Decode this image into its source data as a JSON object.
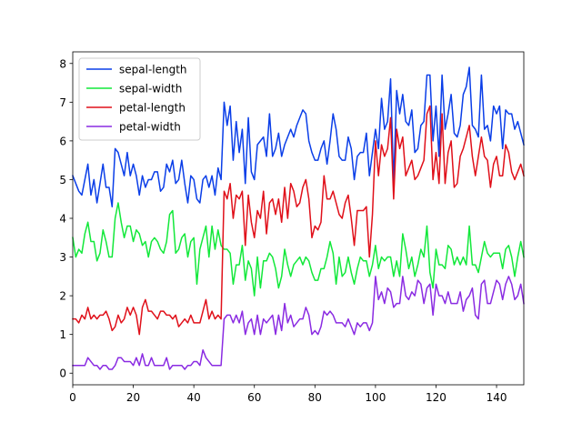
{
  "chart_data": {
    "type": "line",
    "title": "",
    "xlabel": "",
    "ylabel": "",
    "xlim": [
      0,
      149
    ],
    "ylim": [
      -0.3,
      8.3
    ],
    "xticks": [
      0,
      20,
      40,
      60,
      80,
      100,
      120,
      140
    ],
    "yticks": [
      0,
      1,
      2,
      3,
      4,
      5,
      6,
      7,
      8
    ],
    "grid": false,
    "legend_position": "top-left",
    "series": [
      {
        "name": "sepal-length",
        "color": "#0a3ee8",
        "values": [
          5.1,
          4.9,
          4.7,
          4.6,
          5.0,
          5.4,
          4.6,
          5.0,
          4.4,
          4.9,
          5.4,
          4.8,
          4.8,
          4.3,
          5.8,
          5.7,
          5.4,
          5.1,
          5.7,
          5.1,
          5.4,
          5.1,
          4.6,
          5.1,
          4.8,
          5.0,
          5.0,
          5.2,
          5.2,
          4.7,
          4.8,
          5.4,
          5.2,
          5.5,
          4.9,
          5.0,
          5.5,
          4.9,
          4.4,
          5.1,
          5.0,
          4.5,
          4.4,
          5.0,
          5.1,
          4.8,
          5.1,
          4.6,
          5.3,
          5.0,
          7.0,
          6.4,
          6.9,
          5.5,
          6.5,
          5.7,
          6.3,
          4.9,
          6.6,
          5.2,
          5.0,
          5.9,
          6.0,
          6.1,
          5.6,
          6.7,
          5.6,
          5.8,
          6.2,
          5.6,
          5.9,
          6.1,
          6.3,
          6.1,
          6.4,
          6.6,
          6.8,
          6.7,
          6.0,
          5.7,
          5.5,
          5.5,
          5.8,
          6.0,
          5.4,
          6.0,
          6.7,
          6.3,
          5.6,
          5.5,
          5.5,
          6.1,
          5.8,
          5.0,
          5.6,
          5.7,
          5.7,
          6.2,
          5.1,
          5.7,
          6.3,
          5.8,
          7.1,
          6.3,
          6.5,
          7.6,
          4.9,
          7.3,
          6.7,
          7.2,
          6.5,
          6.4,
          6.8,
          5.7,
          5.8,
          6.4,
          6.5,
          7.7,
          7.7,
          6.0,
          6.9,
          5.6,
          7.7,
          6.3,
          6.7,
          7.2,
          6.2,
          6.1,
          6.4,
          7.2,
          7.4,
          7.9,
          6.4,
          6.3,
          6.1,
          7.7,
          6.3,
          6.4,
          6.0,
          6.9,
          6.7,
          6.9,
          5.8,
          6.8,
          6.7,
          6.7,
          6.3,
          6.5,
          6.2,
          5.9
        ]
      },
      {
        "name": "sepal-width",
        "color": "#12e83a",
        "values": [
          3.5,
          3.0,
          3.2,
          3.1,
          3.6,
          3.9,
          3.4,
          3.4,
          2.9,
          3.1,
          3.7,
          3.4,
          3.0,
          3.0,
          4.0,
          4.4,
          3.9,
          3.5,
          3.8,
          3.8,
          3.4,
          3.7,
          3.6,
          3.3,
          3.4,
          3.0,
          3.4,
          3.5,
          3.4,
          3.2,
          3.1,
          3.4,
          4.1,
          4.2,
          3.1,
          3.2,
          3.5,
          3.6,
          3.0,
          3.4,
          3.5,
          2.3,
          3.2,
          3.5,
          3.8,
          3.0,
          3.8,
          3.2,
          3.7,
          3.3,
          3.2,
          3.2,
          3.1,
          2.3,
          2.8,
          2.8,
          3.3,
          2.4,
          2.9,
          2.7,
          2.0,
          3.0,
          2.2,
          2.9,
          2.9,
          3.1,
          3.0,
          2.7,
          2.2,
          2.5,
          3.2,
          2.8,
          2.5,
          2.8,
          2.9,
          3.0,
          2.8,
          3.0,
          2.9,
          2.6,
          2.4,
          2.4,
          2.7,
          2.7,
          3.0,
          3.4,
          3.1,
          2.3,
          3.0,
          2.5,
          2.6,
          3.0,
          2.6,
          2.3,
          2.7,
          3.0,
          2.9,
          2.9,
          2.5,
          2.8,
          3.3,
          2.7,
          3.0,
          2.9,
          3.0,
          3.0,
          2.5,
          2.9,
          2.5,
          3.6,
          3.2,
          2.7,
          3.0,
          2.5,
          2.8,
          3.2,
          3.0,
          3.8,
          2.6,
          2.2,
          3.2,
          2.8,
          2.8,
          2.7,
          3.3,
          3.2,
          2.8,
          3.0,
          2.8,
          3.0,
          2.8,
          3.8,
          2.8,
          2.8,
          2.6,
          3.0,
          3.4,
          3.1,
          3.0,
          3.1,
          3.1,
          3.1,
          2.7,
          3.2,
          3.3,
          3.0,
          2.5,
          3.0,
          3.4,
          3.0
        ]
      },
      {
        "name": "petal-length",
        "color": "#e0101a",
        "values": [
          1.4,
          1.4,
          1.3,
          1.5,
          1.4,
          1.7,
          1.4,
          1.5,
          1.4,
          1.5,
          1.5,
          1.6,
          1.4,
          1.1,
          1.2,
          1.5,
          1.3,
          1.4,
          1.7,
          1.5,
          1.7,
          1.5,
          1.0,
          1.7,
          1.9,
          1.6,
          1.6,
          1.5,
          1.4,
          1.6,
          1.6,
          1.5,
          1.5,
          1.4,
          1.5,
          1.2,
          1.3,
          1.4,
          1.3,
          1.5,
          1.3,
          1.3,
          1.3,
          1.6,
          1.9,
          1.4,
          1.6,
          1.4,
          1.5,
          1.4,
          4.7,
          4.5,
          4.9,
          4.0,
          4.6,
          4.5,
          4.7,
          3.3,
          4.6,
          3.9,
          3.5,
          4.2,
          4.0,
          4.7,
          3.6,
          4.4,
          4.5,
          4.1,
          4.5,
          3.9,
          4.8,
          4.0,
          4.9,
          4.7,
          4.3,
          4.4,
          4.8,
          5.0,
          4.5,
          3.5,
          3.8,
          3.7,
          3.9,
          5.1,
          4.5,
          4.5,
          4.7,
          4.4,
          4.1,
          4.0,
          4.4,
          4.6,
          4.0,
          3.3,
          4.2,
          4.2,
          4.2,
          4.3,
          3.0,
          4.1,
          6.0,
          5.1,
          5.9,
          5.6,
          5.8,
          6.6,
          4.5,
          6.3,
          5.8,
          6.1,
          5.1,
          5.3,
          5.5,
          5.0,
          5.1,
          5.3,
          5.5,
          6.7,
          6.9,
          5.0,
          5.7,
          4.9,
          6.7,
          4.9,
          5.7,
          6.0,
          4.8,
          4.9,
          5.6,
          5.8,
          6.1,
          6.4,
          5.6,
          5.1,
          5.6,
          6.1,
          5.6,
          5.5,
          4.8,
          5.4,
          5.6,
          5.1,
          5.1,
          5.9,
          5.7,
          5.2,
          5.0,
          5.2,
          5.4,
          5.1
        ]
      },
      {
        "name": "petal-width",
        "color": "#8a2be2",
        "values": [
          0.2,
          0.2,
          0.2,
          0.2,
          0.2,
          0.4,
          0.3,
          0.2,
          0.2,
          0.1,
          0.2,
          0.2,
          0.1,
          0.1,
          0.2,
          0.4,
          0.4,
          0.3,
          0.3,
          0.3,
          0.2,
          0.4,
          0.2,
          0.5,
          0.2,
          0.2,
          0.4,
          0.2,
          0.2,
          0.2,
          0.2,
          0.4,
          0.1,
          0.2,
          0.2,
          0.2,
          0.2,
          0.1,
          0.2,
          0.2,
          0.3,
          0.3,
          0.2,
          0.6,
          0.4,
          0.3,
          0.2,
          0.2,
          0.2,
          0.2,
          1.4,
          1.5,
          1.5,
          1.3,
          1.5,
          1.3,
          1.6,
          1.0,
          1.3,
          1.4,
          1.0,
          1.5,
          1.0,
          1.4,
          1.3,
          1.4,
          1.5,
          1.0,
          1.5,
          1.1,
          1.8,
          1.3,
          1.5,
          1.2,
          1.3,
          1.4,
          1.4,
          1.7,
          1.5,
          1.0,
          1.1,
          1.0,
          1.2,
          1.6,
          1.5,
          1.6,
          1.5,
          1.3,
          1.3,
          1.3,
          1.2,
          1.4,
          1.2,
          1.0,
          1.3,
          1.2,
          1.3,
          1.3,
          1.1,
          1.3,
          2.5,
          1.9,
          2.1,
          1.8,
          2.2,
          2.1,
          1.7,
          1.8,
          1.8,
          2.5,
          2.0,
          1.9,
          2.1,
          2.0,
          2.4,
          2.3,
          1.8,
          2.2,
          2.3,
          1.5,
          2.3,
          2.0,
          2.0,
          1.8,
          2.1,
          1.8,
          1.8,
          1.8,
          2.1,
          1.6,
          1.9,
          2.0,
          2.2,
          1.5,
          1.4,
          2.3,
          2.4,
          1.8,
          1.8,
          2.1,
          2.4,
          2.3,
          1.9,
          2.3,
          2.5,
          2.3,
          1.9,
          2.0,
          2.3,
          1.8
        ]
      }
    ]
  }
}
